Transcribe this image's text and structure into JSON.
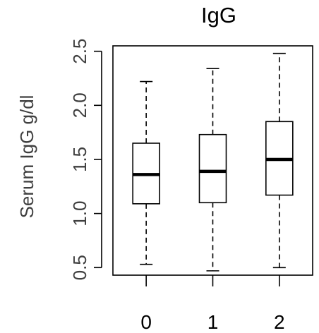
{
  "chart_data": {
    "type": "box",
    "title": "IgG",
    "xlabel": "",
    "ylabel": "Serum IgG g/dl",
    "categories": [
      "0",
      "1",
      "2"
    ],
    "yticks": [
      "0.5",
      "1.0",
      "1.5",
      "2.0",
      "2.5"
    ],
    "ylim": [
      0.43,
      2.55
    ],
    "grid": false,
    "boxes": [
      {
        "category": "0",
        "min": 0.53,
        "q1": 1.09,
        "median": 1.36,
        "q3": 1.65,
        "max": 2.22
      },
      {
        "category": "1",
        "min": 0.47,
        "q1": 1.1,
        "median": 1.39,
        "q3": 1.73,
        "max": 2.34
      },
      {
        "category": "2",
        "min": 0.5,
        "q1": 1.17,
        "median": 1.5,
        "q3": 1.85,
        "max": 2.48
      }
    ]
  }
}
